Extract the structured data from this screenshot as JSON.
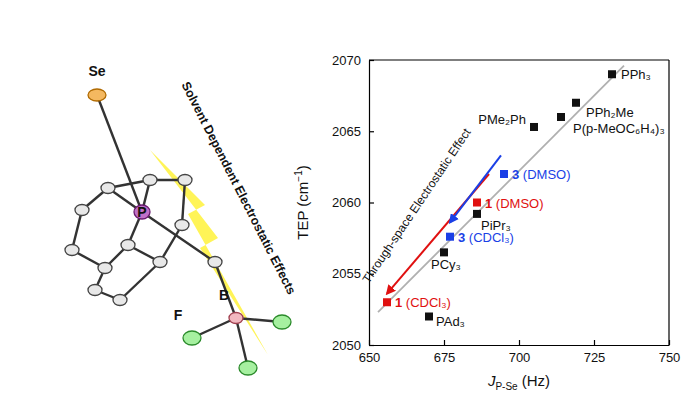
{
  "chart_data": {
    "type": "scatter",
    "x_label": {
      "symbol": "J",
      "subscript": "P-Se",
      "unit": " (Hz)"
    },
    "y_label": {
      "text": "TEP (cm",
      "superscript": "−1",
      "end": ")"
    },
    "x": [
      731,
      719,
      714,
      705,
      695,
      686,
      686,
      677,
      675,
      656,
      670
    ],
    "values": [
      2069,
      2067,
      2066,
      2065.3,
      2062,
      2060,
      2059.2,
      2057.6,
      2056.5,
      2053,
      2052
    ],
    "labels": [
      "PPh₃",
      "PPh₂Me",
      "P(p-MeOC₆H₄)₃",
      "PMe₂Ph",
      "3 (DMSO)",
      "1 (DMSO)",
      "PiPr₃",
      "3 (CDCl₃)",
      "PCy₃",
      "1 (CDCl₃)",
      "PAd₃"
    ],
    "colors": [
      "#111111",
      "#111111",
      "#111111",
      "#111111",
      "#1a3fe6",
      "#e01010",
      "#111111",
      "#1a3fe6",
      "#111111",
      "#e01010",
      "#111111"
    ],
    "marker": "square",
    "trend_line": {
      "color": "#b0b0b0",
      "x": [
        653,
        735
      ],
      "y": [
        2052.3,
        2069.6
      ]
    },
    "arrows": [
      {
        "color": "#e01010",
        "x": [
          690,
          656
        ],
        "y": [
          2062,
          2053.6
        ]
      },
      {
        "color": "#1a3fe6",
        "x": [
          694,
          677
        ],
        "y": [
          2063.3,
          2058.6
        ]
      }
    ],
    "annotations": [
      "Through-space Electrostatic Effect"
    ],
    "xlim": [
      650,
      750
    ],
    "xticks": [
      650,
      675,
      700,
      725,
      750
    ],
    "ylim": [
      2050,
      2070
    ],
    "yticks": [
      2050,
      2055,
      2060,
      2065,
      2070
    ],
    "grid": false
  },
  "structure": {
    "atom_labels": [
      "Se",
      "P",
      "B",
      "F"
    ],
    "caption": "Solvent Dependent Electrostatic Effects"
  }
}
